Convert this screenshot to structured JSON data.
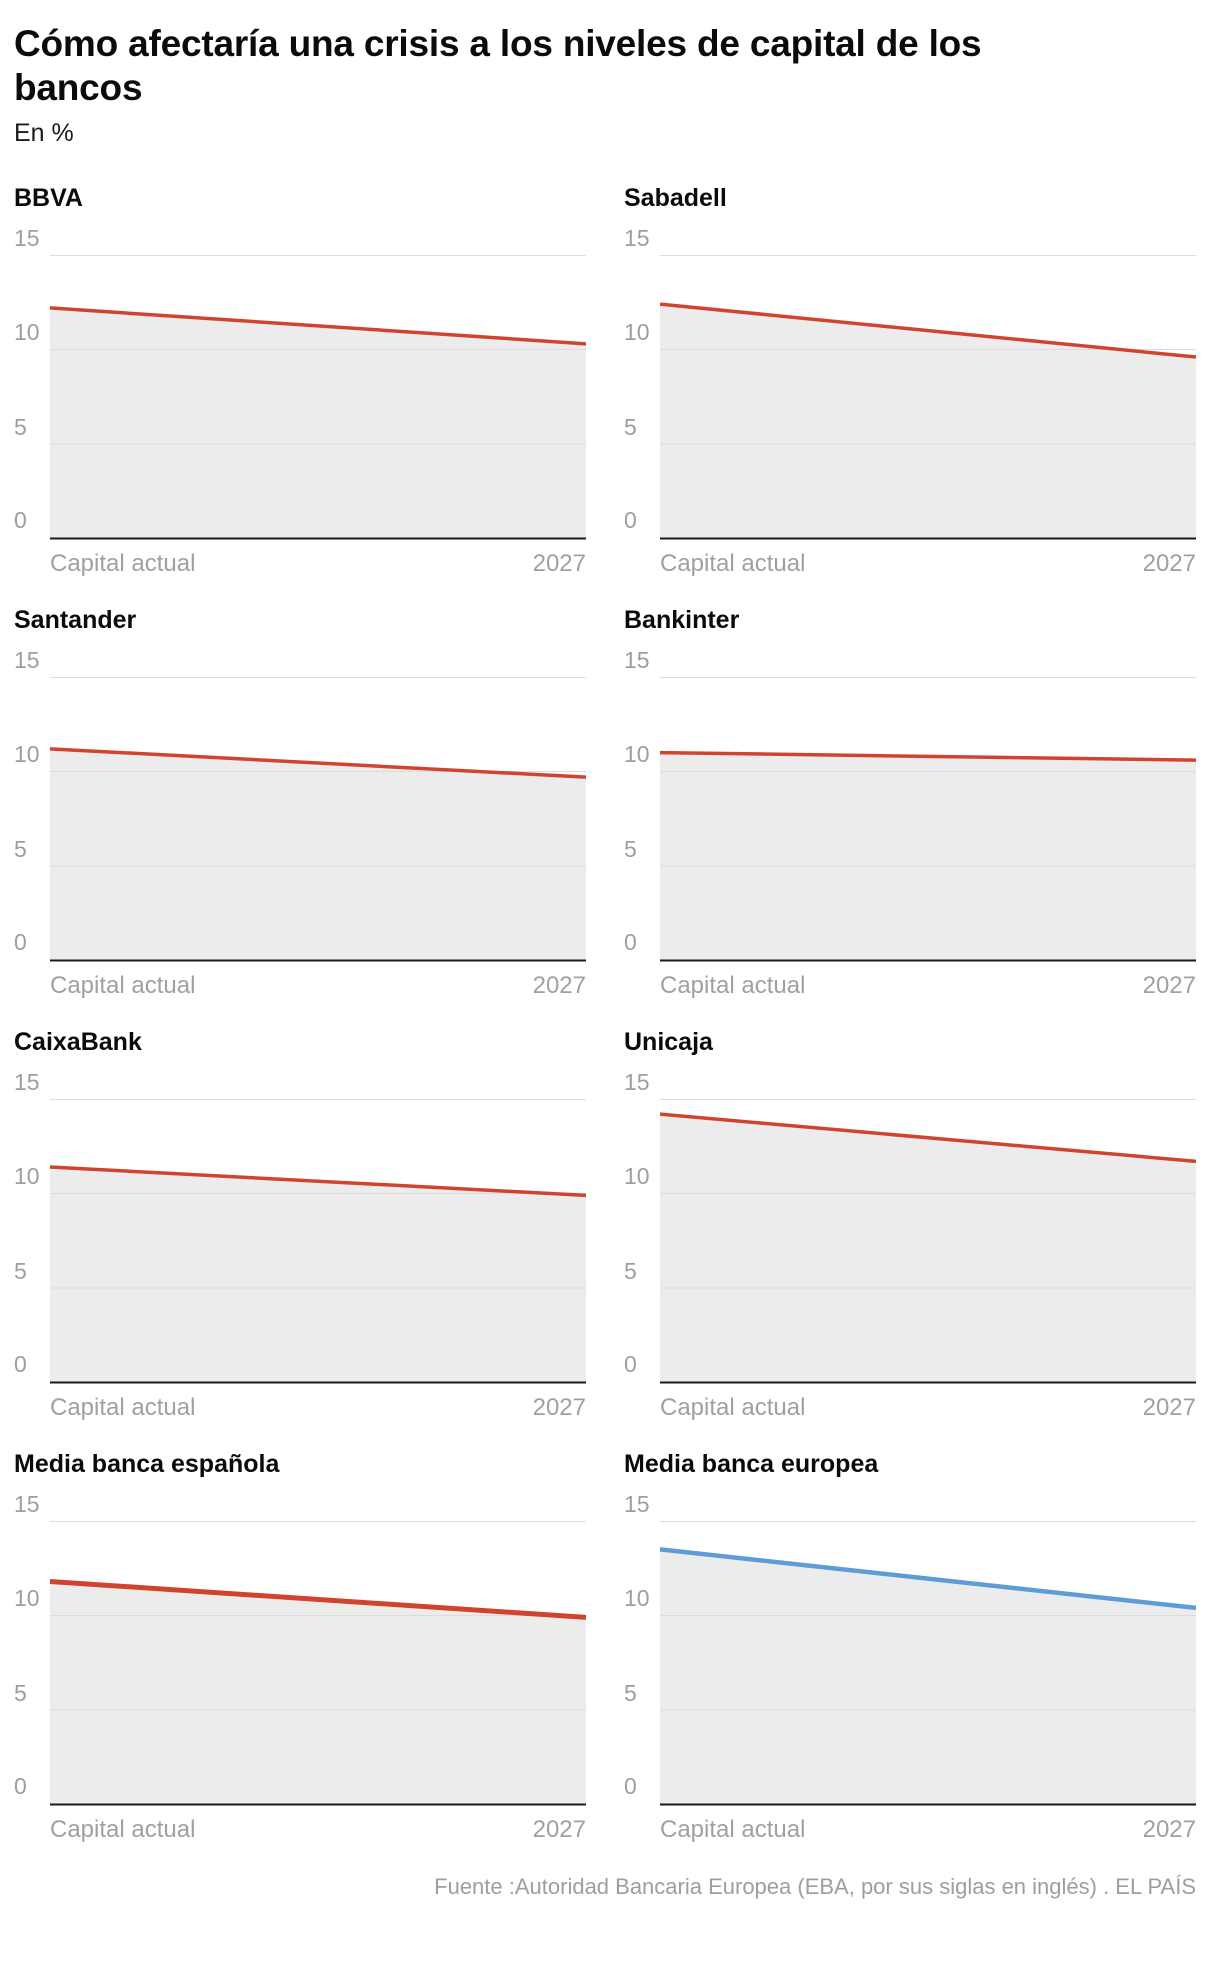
{
  "header": {
    "title": "Cómo afectaría una crisis a los niveles de capital de los bancos",
    "subtitle": "En %"
  },
  "axis": {
    "x_left": "Capital actual",
    "x_right": "2027",
    "yticks": [
      15,
      10,
      5,
      0
    ],
    "ylim": [
      0,
      15
    ]
  },
  "colors": {
    "red": "#d0442e",
    "blue": "#5e9cd6",
    "area": "#ececec",
    "grid": "#dcdcdc",
    "baseline": "#1a1a1a"
  },
  "footer": {
    "source": "Fuente :Autoridad Bancaria Europea (EBA, por sus siglas en inglés) . EL PAÍS"
  },
  "chart_data": [
    {
      "name": "BBVA",
      "type": "area",
      "categories": [
        "Capital actual",
        "2027"
      ],
      "values": [
        12.2,
        10.3
      ],
      "color": "red",
      "line_width": 3.5,
      "ylim": [
        0,
        15
      ]
    },
    {
      "name": "Sabadell",
      "type": "area",
      "categories": [
        "Capital actual",
        "2027"
      ],
      "values": [
        12.4,
        9.6
      ],
      "color": "red",
      "line_width": 3.5,
      "ylim": [
        0,
        15
      ]
    },
    {
      "name": "Santander",
      "type": "area",
      "categories": [
        "Capital actual",
        "2027"
      ],
      "values": [
        11.2,
        9.7
      ],
      "color": "red",
      "line_width": 3.5,
      "ylim": [
        0,
        15
      ]
    },
    {
      "name": "Bankinter",
      "type": "area",
      "categories": [
        "Capital actual",
        "2027"
      ],
      "values": [
        11.0,
        10.6
      ],
      "color": "red",
      "line_width": 3.5,
      "ylim": [
        0,
        15
      ]
    },
    {
      "name": "CaixaBank",
      "type": "area",
      "categories": [
        "Capital actual",
        "2027"
      ],
      "values": [
        11.4,
        9.9
      ],
      "color": "red",
      "line_width": 3.5,
      "ylim": [
        0,
        15
      ]
    },
    {
      "name": "Unicaja",
      "type": "area",
      "categories": [
        "Capital actual",
        "2027"
      ],
      "values": [
        14.2,
        11.7
      ],
      "color": "red",
      "line_width": 3.5,
      "ylim": [
        0,
        15
      ]
    },
    {
      "name": "Media banca española",
      "type": "area",
      "categories": [
        "Capital actual",
        "2027"
      ],
      "values": [
        11.8,
        9.9
      ],
      "color": "red",
      "line_width": 5,
      "ylim": [
        0,
        15
      ]
    },
    {
      "name": "Media banca europea",
      "type": "area",
      "categories": [
        "Capital actual",
        "2027"
      ],
      "values": [
        13.5,
        10.4
      ],
      "color": "blue",
      "line_width": 4.5,
      "ylim": [
        0,
        15
      ]
    }
  ]
}
